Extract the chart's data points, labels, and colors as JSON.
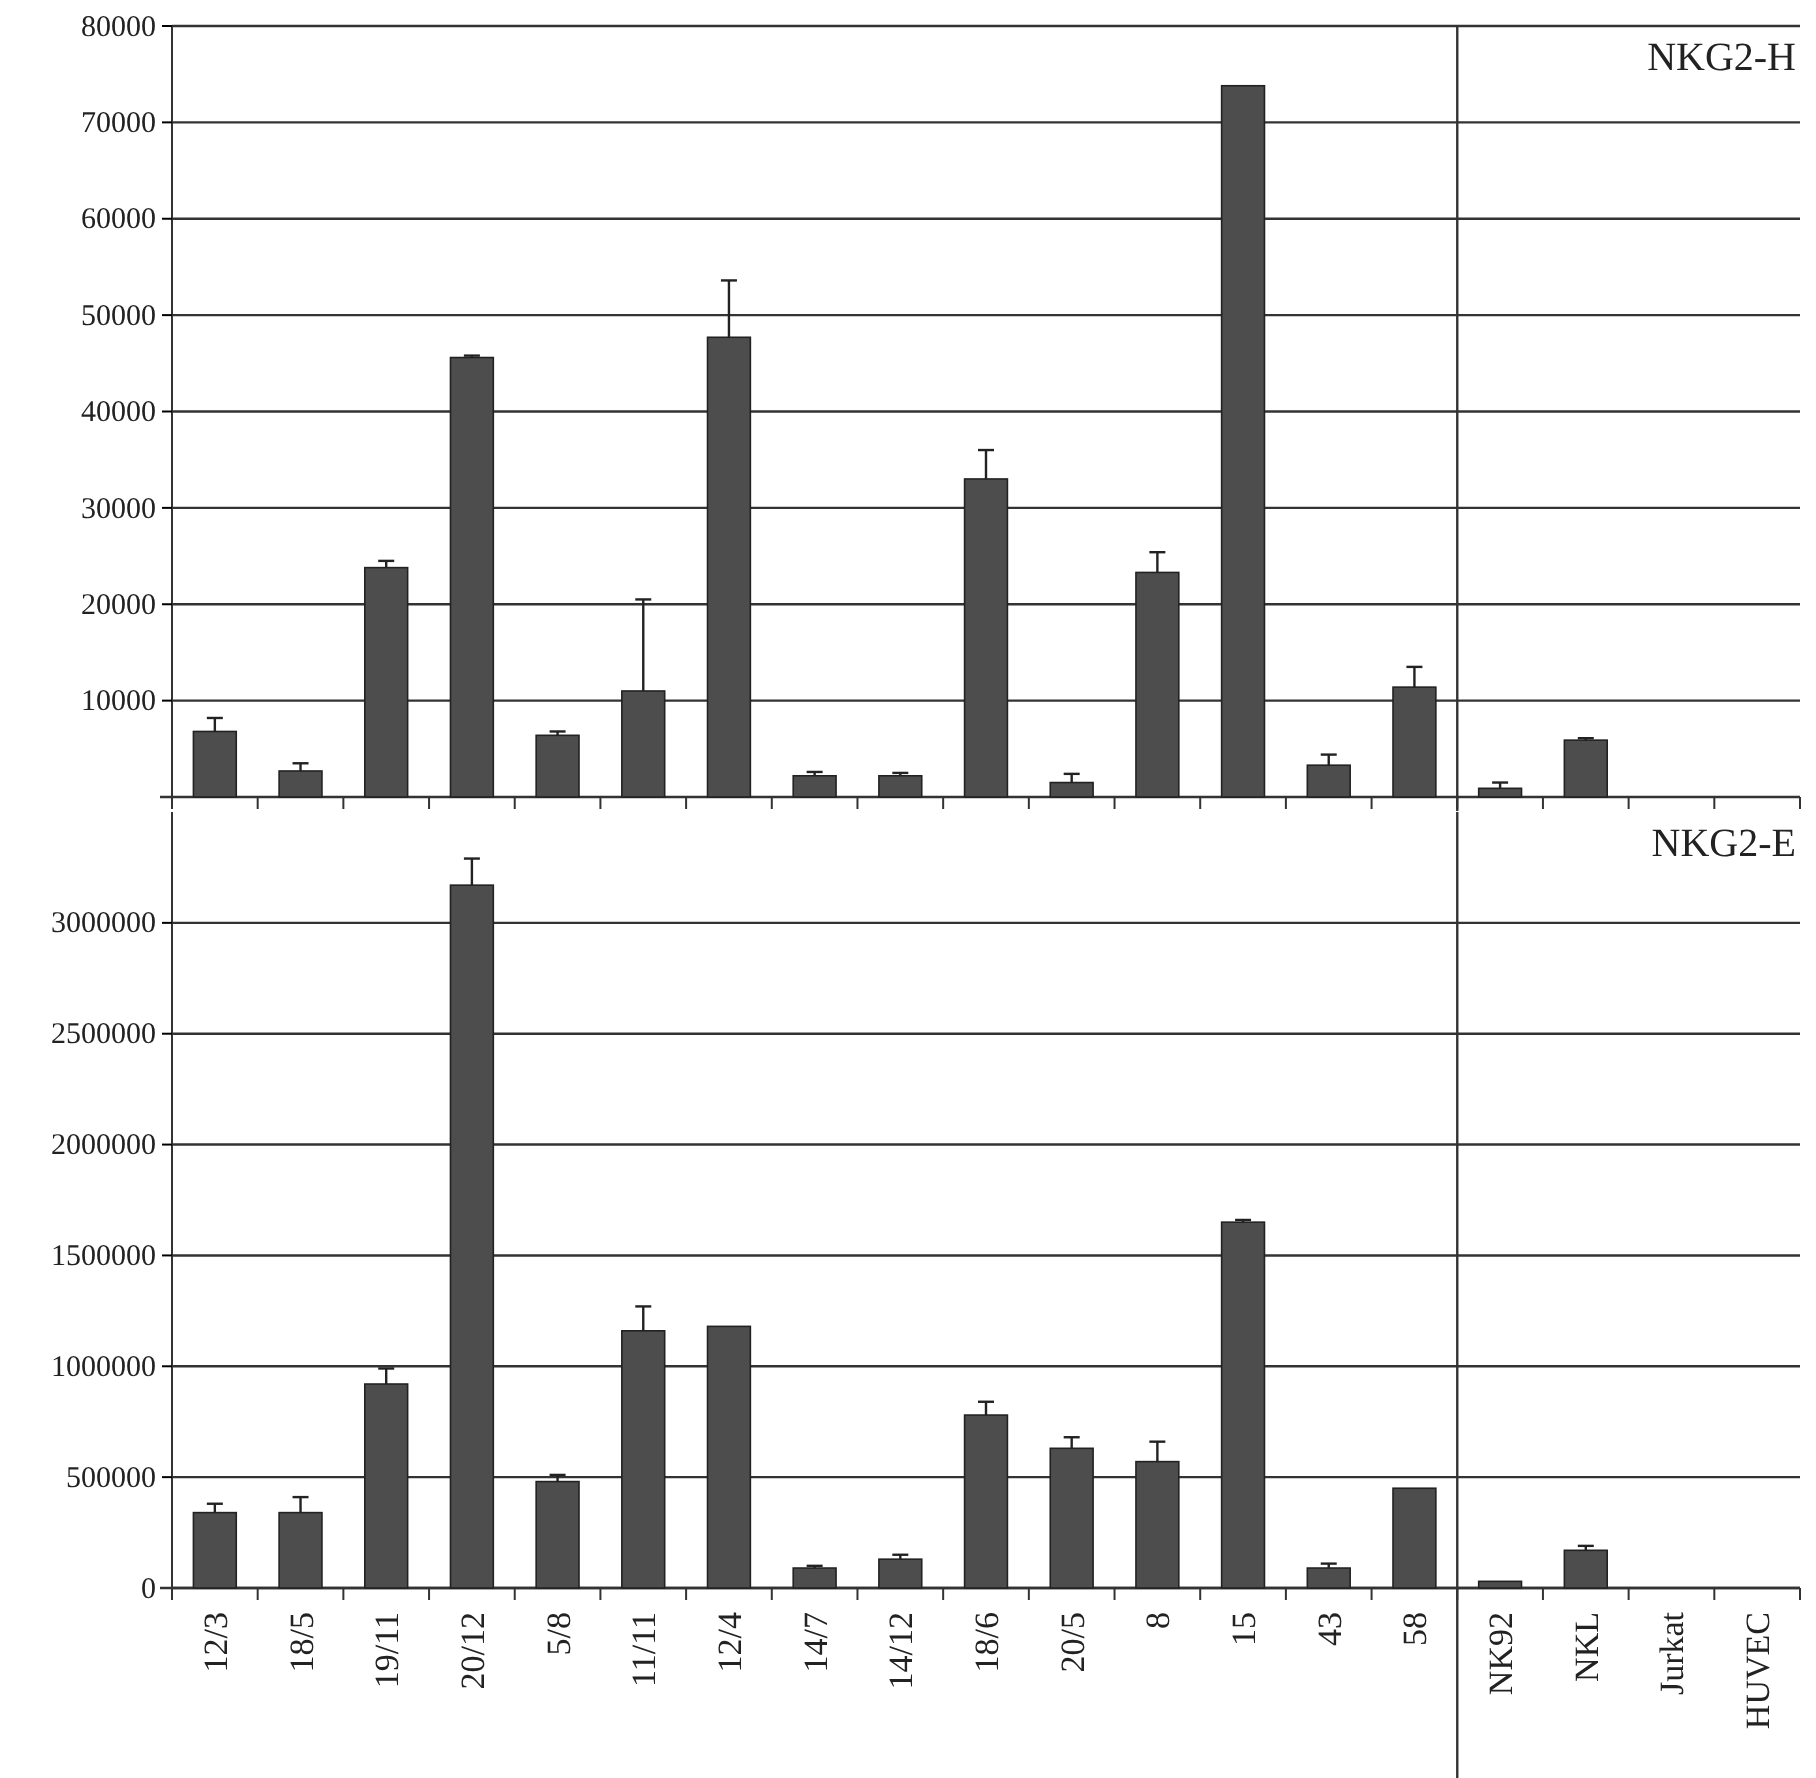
{
  "chart_data": [
    {
      "type": "bar",
      "title": "NKG2-H",
      "categories": [
        null,
        null,
        null,
        null,
        null,
        null,
        null,
        null,
        null,
        null,
        null,
        null,
        null,
        null,
        null,
        null,
        null,
        null,
        null
      ],
      "values": [
        6800,
        2700,
        23800,
        45600,
        6400,
        11000,
        47700,
        2200,
        2200,
        33000,
        1500,
        23300,
        73800,
        3300,
        11400,
        900,
        5900,
        0,
        0
      ],
      "errors": [
        [
          6800,
          8200
        ],
        [
          2700,
          3500
        ],
        [
          23800,
          24500
        ],
        [
          45600,
          45800
        ],
        [
          6400,
          6800
        ],
        [
          11000,
          20500
        ],
        [
          47700,
          53600
        ],
        [
          2200,
          2600
        ],
        [
          2200,
          2500
        ],
        [
          33000,
          36000
        ],
        [
          1500,
          2400
        ],
        [
          23300,
          25400
        ],
        null,
        [
          3300,
          4400
        ],
        [
          11400,
          13500
        ],
        [
          900,
          1500
        ],
        [
          5900,
          6100
        ],
        null,
        null
      ],
      "color": "#4d4d4d",
      "ylim": [
        0,
        80000
      ],
      "yticks": [
        10000,
        20000,
        30000,
        40000,
        50000,
        60000,
        70000,
        80000
      ],
      "grid": "y",
      "tick_labels": "y"
    },
    {
      "type": "bar",
      "title": "NKG2-E",
      "categories": [
        "12/3",
        "18/5",
        "19/11",
        "20/12",
        "5/8",
        "11/11",
        "12/4",
        "14/7",
        "14/12",
        "18/6",
        "20/5",
        "8",
        "15",
        "43",
        "58",
        "NK92",
        "NKL",
        "Jurkat",
        "HUVEC"
      ],
      "values": [
        340000,
        340000,
        920000,
        3170000,
        480000,
        1160000,
        1180000,
        90000,
        130000,
        780000,
        630000,
        570000,
        1650000,
        90000,
        450000,
        30000,
        170000,
        0,
        0
      ],
      "errors": [
        [
          340000,
          380000
        ],
        [
          340000,
          410000
        ],
        [
          920000,
          990000
        ],
        [
          3170000,
          3290000
        ],
        [
          480000,
          510000
        ],
        [
          1160000,
          1270000
        ],
        null,
        [
          90000,
          100000
        ],
        [
          130000,
          150000
        ],
        [
          780000,
          840000
        ],
        [
          630000,
          680000
        ],
        [
          570000,
          660000
        ],
        [
          1650000,
          1660000
        ],
        [
          90000,
          110000
        ],
        null,
        null,
        [
          170000,
          190000
        ],
        null,
        null
      ],
      "color": "#4d4d4d",
      "ylim": [
        0,
        3500000
      ],
      "yticks": [
        0,
        500000,
        1000000,
        1500000,
        2000000,
        2500000,
        3000000
      ],
      "grid": "y"
    }
  ]
}
